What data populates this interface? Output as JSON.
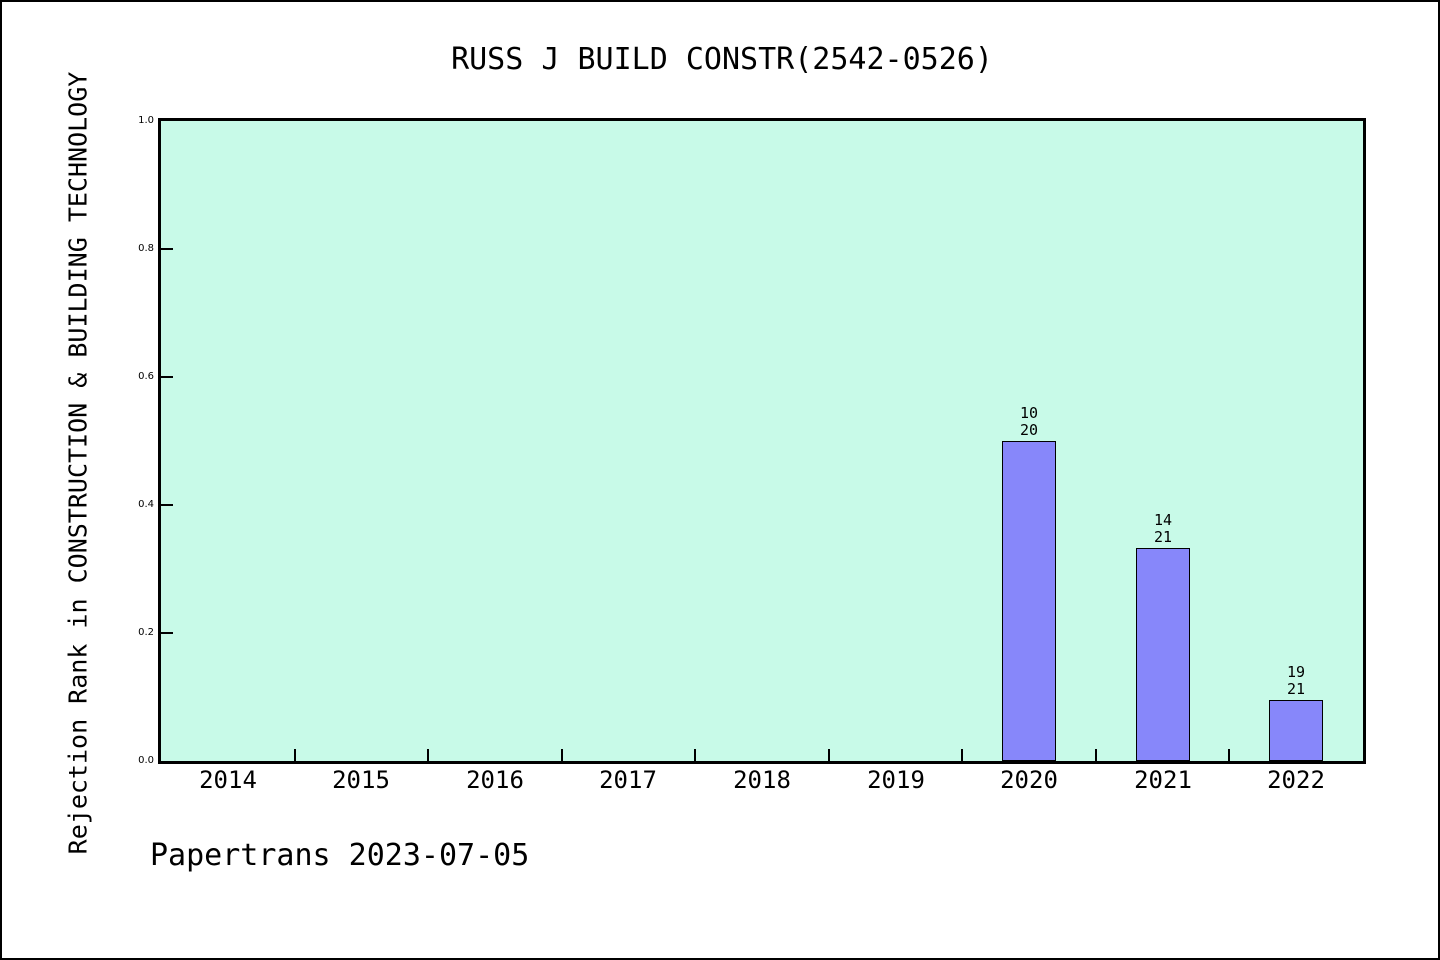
{
  "window": {
    "background": "#ffffff",
    "frame_border_color": "#000000"
  },
  "chart_data": {
    "type": "bar",
    "title": "RUSS J BUILD CONSTR(2542-0526)",
    "ylabel": "Rejection Rank in CONSTRUCTION & BUILDING TECHNOLOGY",
    "xlabel": "",
    "categories": [
      "2014",
      "2015",
      "2016",
      "2017",
      "2018",
      "2019",
      "2020",
      "2021",
      "2022"
    ],
    "values": [
      null,
      null,
      null,
      null,
      null,
      null,
      0.5,
      0.33333,
      0.09524
    ],
    "bar_labels": [
      null,
      null,
      null,
      null,
      null,
      null,
      [
        "10",
        "20"
      ],
      [
        "14",
        "21"
      ],
      [
        "19",
        "21"
      ]
    ],
    "yticks": [
      0.0,
      0.2,
      0.4,
      0.6,
      0.8,
      1.0
    ],
    "ytick_labels": [
      "0.0",
      "0.2",
      "0.4",
      "0.6",
      "0.8",
      "1.0"
    ],
    "ylim": [
      0,
      1
    ],
    "grid": false,
    "legend": null,
    "plot_background": "#c8fae8",
    "bar_color": "#8787fa",
    "bar_edge_color": "#000000",
    "axis_color": "#000000"
  },
  "footer": {
    "text": "Papertrans 2023-07-05"
  }
}
